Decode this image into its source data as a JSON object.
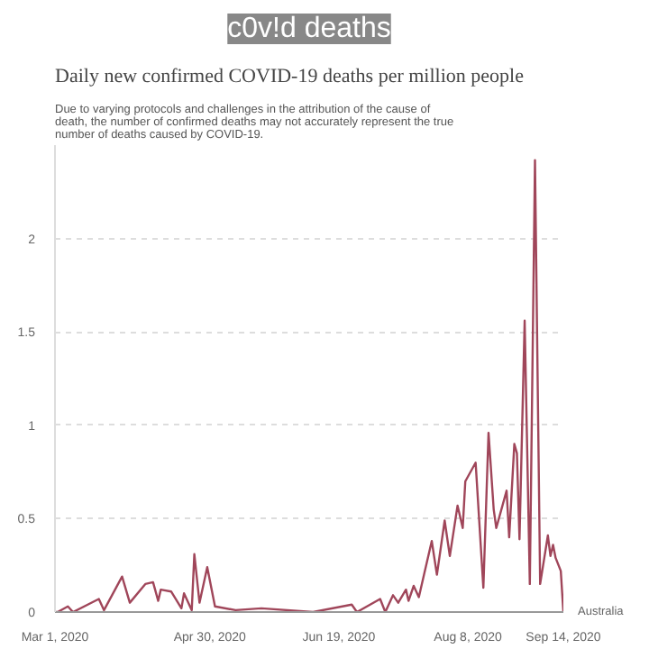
{
  "chart_data": {
    "type": "line",
    "title": "Daily new confirmed COVID-19 deaths per million people",
    "subtitle": "Due to varying protocols and challenges in the attribution of the cause of death, the number of confirmed deaths may not accurately represent the true number of deaths caused by COVID-19.",
    "annotations": [
      "c0v!d deaths"
    ],
    "x": [
      "2020-03-01",
      "2020-03-02",
      "2020-03-06",
      "2020-03-08",
      "2020-03-18",
      "2020-03-20",
      "2020-03-27",
      "2020-03-30",
      "2020-04-05",
      "2020-04-08",
      "2020-04-10",
      "2020-04-11",
      "2020-04-15",
      "2020-04-19",
      "2020-04-20",
      "2020-04-23",
      "2020-04-24",
      "2020-04-26",
      "2020-04-29",
      "2020-05-02",
      "2020-05-10",
      "2020-05-20",
      "2020-06-09",
      "2020-06-24",
      "2020-06-26",
      "2020-07-05",
      "2020-07-07",
      "2020-07-10",
      "2020-07-12",
      "2020-07-15",
      "2020-07-16",
      "2020-07-18",
      "2020-07-20",
      "2020-07-22",
      "2020-07-25",
      "2020-07-27",
      "2020-07-30",
      "2020-08-01",
      "2020-08-04",
      "2020-08-06",
      "2020-08-07",
      "2020-08-11",
      "2020-08-14",
      "2020-08-16",
      "2020-08-18",
      "2020-08-19",
      "2020-08-23",
      "2020-08-24",
      "2020-08-26",
      "2020-08-27",
      "2020-08-28",
      "2020-08-30",
      "2020-09-01",
      "2020-09-03",
      "2020-09-05",
      "2020-09-08",
      "2020-09-09",
      "2020-09-10",
      "2020-09-11",
      "2020-09-13",
      "2020-09-14"
    ],
    "series": [
      {
        "name": "Australia",
        "color": "#a0465a",
        "values": [
          0,
          0,
          0.03,
          0,
          0.07,
          0.01,
          0.19,
          0.05,
          0.15,
          0.16,
          0.06,
          0.12,
          0.11,
          0.02,
          0.1,
          0.01,
          0.31,
          0.05,
          0.24,
          0.03,
          0.01,
          0.02,
          0,
          0.04,
          0,
          0.07,
          0,
          0.09,
          0.05,
          0.12,
          0.06,
          0.14,
          0.08,
          0.2,
          0.38,
          0.2,
          0.49,
          0.3,
          0.57,
          0.45,
          0.7,
          0.8,
          0.13,
          0.96,
          0.55,
          0.45,
          0.65,
          0.4,
          0.9,
          0.85,
          0.39,
          1.56,
          0.15,
          2.42,
          0.15,
          0.41,
          0.3,
          0.36,
          0.29,
          0.22,
          0
        ]
      }
    ],
    "xlim": [
      "2020-03-01",
      "2020-09-14"
    ],
    "xticks": [
      {
        "value": "2020-03-01",
        "label": "Mar 1, 2020"
      },
      {
        "value": "2020-04-30",
        "label": "Apr 30, 2020"
      },
      {
        "value": "2020-06-19",
        "label": "Jun 19, 2020"
      },
      {
        "value": "2020-08-08",
        "label": "Aug 8, 2020"
      },
      {
        "value": "2020-09-14",
        "label": "Sep 14, 2020"
      }
    ],
    "ylim": [
      0,
      2.5
    ],
    "yticks": [
      0,
      0.5,
      1,
      1.5,
      2
    ],
    "grid": "y",
    "line_style": "solid"
  }
}
